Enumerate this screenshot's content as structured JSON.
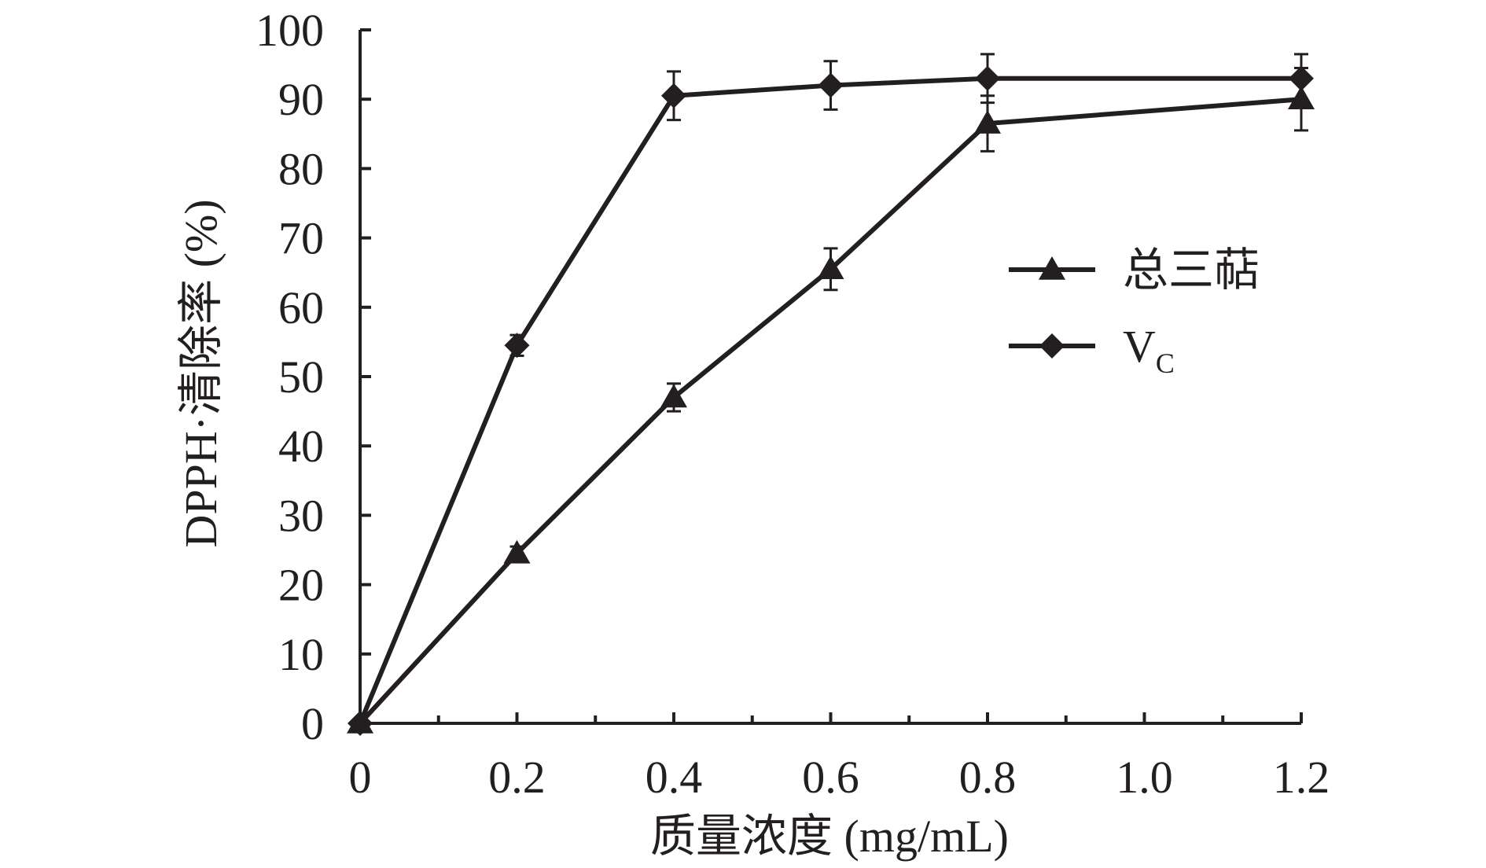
{
  "chart_data": {
    "type": "line",
    "xlabel": "质量浓度 (mg/mL)",
    "ylabel": "DPPH·清除率 (%)",
    "xlim": [
      0,
      1.2
    ],
    "ylim": [
      0,
      100
    ],
    "x_ticks": [
      0,
      0.2,
      0.4,
      0.6,
      0.8,
      1.0,
      1.2
    ],
    "x_tick_labels": [
      "0",
      "0.2",
      "0.4",
      "0.6",
      "0.8",
      "1.0",
      "1.2"
    ],
    "y_ticks": [
      0,
      10,
      20,
      30,
      40,
      50,
      60,
      70,
      80,
      90,
      100
    ],
    "y_tick_labels": [
      "0",
      "10",
      "20",
      "30",
      "40",
      "50",
      "60",
      "70",
      "80",
      "90",
      "100"
    ],
    "grid": false,
    "legend_position": "right",
    "line_color": "#231f20",
    "series": [
      {
        "name": "总三萜",
        "marker": "triangle",
        "x": [
          0,
          0.2,
          0.4,
          0.6,
          0.8,
          1.2
        ],
        "y": [
          0,
          24.5,
          47,
          65.5,
          86.5,
          90
        ],
        "error": [
          0,
          1,
          2,
          3,
          4,
          4.5
        ]
      },
      {
        "name": "V",
        "name_subscript": "C",
        "marker": "diamond",
        "x": [
          0,
          0.2,
          0.4,
          0.6,
          0.8,
          1.2
        ],
        "y": [
          0,
          54.5,
          90.5,
          92,
          93,
          93
        ],
        "error": [
          0,
          1.5,
          3.5,
          3.5,
          3.5,
          3.5
        ]
      }
    ]
  }
}
